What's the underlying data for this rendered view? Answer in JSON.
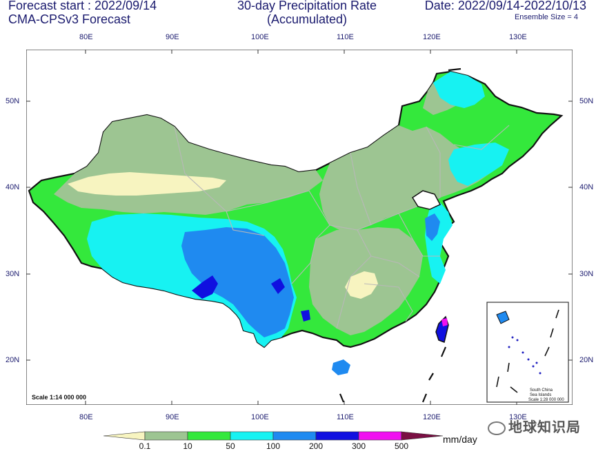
{
  "header": {
    "left_line1": "Forecast start : 2022/09/14",
    "left_line2": "CMA-CPSv3 Forecast",
    "center_line1": "30-day Precipitation Rate",
    "center_line2": "(Accumulated)",
    "right_line1": "Date: 2022/09/14-2022/10/13",
    "right_line2": "Ensemble Size = 4"
  },
  "map": {
    "lon_labels": [
      "80E",
      "90E",
      "100E",
      "110E",
      "120E",
      "130E"
    ],
    "lat_labels": [
      "50N",
      "40N",
      "30N",
      "20N"
    ],
    "scale_text": "Scale 1:14 000 000",
    "inset_line1": "South China",
    "inset_line2": "Sea Islands",
    "inset_scale": "Scale 1:28 000 000"
  },
  "colorbar": {
    "labels": [
      "0.1",
      "10",
      "50",
      "100",
      "200",
      "300",
      "500"
    ],
    "unit": "mm/day",
    "colors": [
      "#f7f4c0",
      "#9dc592",
      "#34e83c",
      "#17f2f2",
      "#1f8af0",
      "#1010e0",
      "#f010f0",
      "#7a0f43"
    ]
  },
  "watermark": "地球知识局"
}
